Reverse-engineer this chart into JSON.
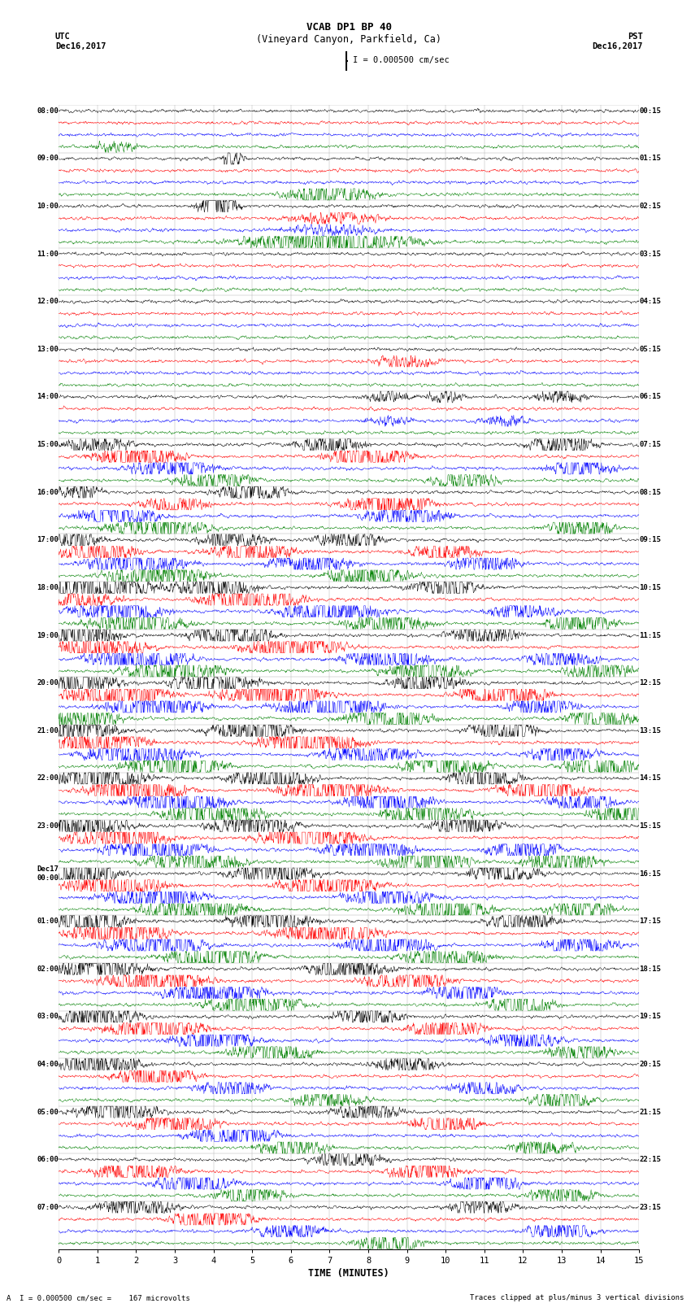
{
  "title_line1": "VCAB DP1 BP 40",
  "title_line2": "(Vineyard Canyon, Parkfield, Ca)",
  "scale_label": "I = 0.000500 cm/sec",
  "left_header": "UTC",
  "left_date": "Dec16,2017",
  "right_header": "PST",
  "right_date": "Dec16,2017",
  "xlabel": "TIME (MINUTES)",
  "bottom_left_note": "A  I = 0.000500 cm/sec =    167 microvolts",
  "bottom_right_note": "Traces clipped at plus/minus 3 vertical divisions",
  "left_times": [
    "08:00",
    "09:00",
    "10:00",
    "11:00",
    "12:00",
    "13:00",
    "14:00",
    "15:00",
    "16:00",
    "17:00",
    "18:00",
    "19:00",
    "20:00",
    "21:00",
    "22:00",
    "23:00",
    "Dec17\n00:00",
    "01:00",
    "02:00",
    "03:00",
    "04:00",
    "05:00",
    "06:00",
    "07:00"
  ],
  "right_times": [
    "00:15",
    "01:15",
    "02:15",
    "03:15",
    "04:15",
    "05:15",
    "06:15",
    "07:15",
    "08:15",
    "09:15",
    "10:15",
    "11:15",
    "12:15",
    "13:15",
    "14:15",
    "15:15",
    "16:15",
    "17:15",
    "18:15",
    "19:15",
    "20:15",
    "21:15",
    "22:15",
    "23:15"
  ],
  "n_rows": 24,
  "n_traces_per_row": 4,
  "trace_colors": [
    "black",
    "red",
    "blue",
    "green"
  ],
  "bg_color": "white",
  "fig_width": 8.5,
  "fig_height": 16.13,
  "dpi": 100,
  "xmin": 0,
  "xmax": 15,
  "xticks": [
    0,
    1,
    2,
    3,
    4,
    5,
    6,
    7,
    8,
    9,
    10,
    11,
    12,
    13,
    14,
    15
  ],
  "noise_amp": 0.018,
  "event_amp": 0.12,
  "clip_level": 0.2
}
